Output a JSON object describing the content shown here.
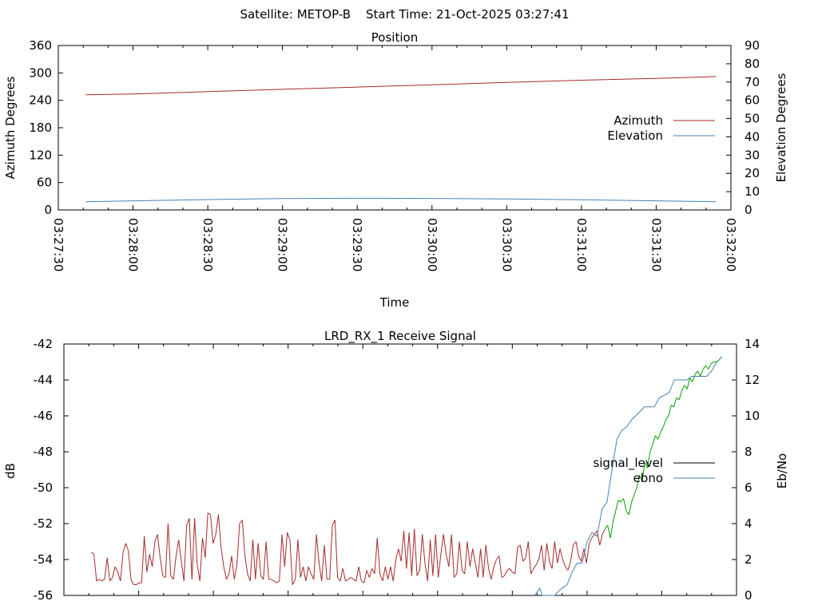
{
  "header": {
    "satellite": "Satellite: METOP-B",
    "start_time": "Start Time: 21-Oct-2025 03:27:41"
  },
  "chart_data": [
    {
      "type": "line",
      "title": "Position",
      "xlabel": "Time",
      "ylabel": "Azimuth Degrees",
      "y2label": "Elevation Degrees",
      "x_ticks": [
        "03:27:30",
        "03:28:00",
        "03:28:30",
        "03:29:00",
        "03:29:30",
        "03:30:00",
        "03:30:30",
        "03:31:00",
        "03:31:30",
        "03:32:00"
      ],
      "xlim": [
        "03:27:30",
        "03:32:00"
      ],
      "ylim": [
        0,
        360
      ],
      "y_ticks": [
        0,
        60,
        120,
        180,
        240,
        300,
        360
      ],
      "y2lim": [
        0,
        90
      ],
      "y2_ticks": [
        0,
        10,
        20,
        30,
        40,
        50,
        60,
        70,
        80,
        90
      ],
      "legend_position": "right",
      "series": [
        {
          "name": "Azimuth",
          "axis": "y",
          "color": "#a52a2a",
          "x": [
            "03:27:41",
            "03:28:00",
            "03:28:30",
            "03:29:00",
            "03:29:30",
            "03:30:00",
            "03:30:30",
            "03:31:00",
            "03:31:30",
            "03:31:54"
          ],
          "values": [
            252,
            254,
            259,
            264,
            269,
            274,
            279,
            284,
            288,
            292
          ]
        },
        {
          "name": "Elevation",
          "axis": "y2",
          "color": "#4682b4",
          "x": [
            "03:27:41",
            "03:28:00",
            "03:28:30",
            "03:29:00",
            "03:29:30",
            "03:30:00",
            "03:30:30",
            "03:31:00",
            "03:31:30",
            "03:31:54"
          ],
          "values": [
            4.5,
            5.0,
            5.7,
            6.2,
            6.4,
            6.3,
            6.0,
            5.6,
            5.0,
            4.5
          ]
        }
      ]
    },
    {
      "type": "line",
      "title": "LRD_RX_1 Receive Signal",
      "ylabel": "dB",
      "y2label": "Eb/No",
      "ylim": [
        -56,
        -42
      ],
      "y_ticks": [
        -56,
        -54,
        -52,
        -50,
        -48,
        -46,
        -44,
        -42
      ],
      "y2lim": [
        0,
        14
      ],
      "y2_ticks": [
        0,
        2,
        4,
        6,
        8,
        10,
        12,
        14
      ],
      "xlim": [
        "03:27:30",
        "03:32:00"
      ],
      "legend_position": "right",
      "series": [
        {
          "name": "signal_level",
          "axis": "y",
          "color": "#000000",
          "segment_colors": {
            "below_threshold": "#a52a2a",
            "above_threshold": "#00a000"
          },
          "x_start": "03:27:41",
          "x_end": "03:31:54",
          "values": [
            -53.6,
            -53.7,
            -55.2,
            -55.1,
            -55.2,
            -55.1,
            -53.9,
            -55.2,
            -55.0,
            -54.4,
            -54.7,
            -55.2,
            -53.6,
            -53.1,
            -53.5,
            -55.1,
            -55.4,
            -55.4,
            -55.3,
            -55.3,
            -52.7,
            -54.7,
            -53.7,
            -54.4,
            -53.0,
            -52.6,
            -53.9,
            -54.9,
            -55.0,
            -52.0,
            -54.9,
            -55.1,
            -53.8,
            -52.9,
            -54.1,
            -55.2,
            -52.1,
            -51.7,
            -55.1,
            -51.7,
            -54.3,
            -55.2,
            -52.8,
            -53.9,
            -51.4,
            -51.5,
            -53.1,
            -52.6,
            -51.5,
            -53.3,
            -54.4,
            -55.1,
            -54.8,
            -53.8,
            -55.1,
            -54.3,
            -52.0,
            -51.8,
            -53.8,
            -54.8,
            -55.2,
            -52.9,
            -55.1,
            -53.1,
            -54.9,
            -55.1,
            -53.0,
            -55.1,
            -55.1,
            -55.2,
            -55.3,
            -55.2,
            -52.6,
            -54.4,
            -52.5,
            -52.9,
            -55.4,
            -55.1,
            -52.9,
            -55.0,
            -54.4,
            -55.2,
            -54.4,
            -54.8,
            -55.1,
            -52.6,
            -54.2,
            -55.2,
            -53.2,
            -55.1,
            -55.1,
            -52.1,
            -51.8,
            -55.0,
            -55.2,
            -54.5,
            -55.2,
            -55.1,
            -55.0,
            -55.1,
            -55.2,
            -54.4,
            -55.2,
            -55.3,
            -54.6,
            -55.0,
            -54.5,
            -54.8,
            -52.8,
            -54.8,
            -55.2,
            -54.4,
            -55.1,
            -54.4,
            -55.2,
            -54.0,
            -53.4,
            -54.1,
            -52.4,
            -54.5,
            -52.5,
            -54.9,
            -52.3,
            -54.9,
            -54.6,
            -52.6,
            -54.2,
            -55.2,
            -52.9,
            -54.9,
            -52.6,
            -55.0,
            -53.7,
            -52.6,
            -53.7,
            -54.4,
            -52.6,
            -55.0,
            -54.8,
            -53.0,
            -54.6,
            -54.8,
            -53.0,
            -54.4,
            -53.4,
            -54.2,
            -55.0,
            -53.4,
            -55.0,
            -53.2,
            -54.5,
            -55.1,
            -54.4,
            -54.0,
            -53.8,
            -55.0,
            -54.9,
            -54.6,
            -54.5,
            -54.7,
            -54.8,
            -53.3,
            -53.2,
            -54.1,
            -53.9,
            -53.0,
            -54.8,
            -54.5,
            -54.3,
            -54.0,
            -53.2,
            -54.6,
            -53.1,
            -54.1,
            -54.5,
            -53.0,
            -54.2,
            -53.4,
            -54.0,
            -54.4,
            -54.6,
            -54.1,
            -53.2,
            -53.0,
            -53.8,
            -54.1,
            -53.4,
            -54.2,
            -53.1,
            -52.8,
            -52.6,
            -52.4,
            -53.2,
            -52.6,
            -52.3,
            -52.1,
            -52.8,
            -51.9,
            -51.3,
            -50.7,
            -50.8,
            -50.6,
            -51.3,
            -51.5,
            -50.8,
            -50.4,
            -50.0,
            -49.3,
            -49.6,
            -48.6,
            -48.9,
            -48.0,
            -47.6,
            -47.1,
            -47.3,
            -46.9,
            -46.6,
            -46.2,
            -46.0,
            -45.4,
            -45.5,
            -45.0,
            -45.1,
            -44.6,
            -44.3,
            -44.5,
            -43.9,
            -44.1,
            -43.7,
            -43.5,
            -43.8,
            -43.4,
            -43.2,
            -43.4,
            -43.1,
            -43.0,
            -43.0,
            -42.9,
            -42.7
          ]
        },
        {
          "name": "ebno",
          "axis": "y2",
          "color": "#4682b4",
          "x": [
            "03:30:39",
            "03:30:41",
            "03:30:42",
            "03:30:47",
            "03:30:49",
            "03:30:52",
            "03:30:54",
            "03:30:56",
            "03:30:58",
            "03:30:59",
            "03:31:00",
            "03:31:02",
            "03:31:04",
            "03:31:06",
            "03:31:08",
            "03:31:10",
            "03:31:12",
            "03:31:14",
            "03:31:16",
            "03:31:18",
            "03:31:21",
            "03:31:23",
            "03:31:27",
            "03:31:29",
            "03:31:33",
            "03:31:35",
            "03:31:40",
            "03:31:42",
            "03:31:48",
            "03:31:50",
            "03:31:52"
          ],
          "values": [
            0,
            0.4,
            0,
            0,
            0.3,
            0.6,
            1.3,
            1.8,
            1.8,
            2.4,
            3.0,
            3.5,
            3.3,
            4.8,
            5.2,
            7.0,
            8.7,
            9.2,
            9.4,
            9.8,
            10.2,
            10.5,
            10.5,
            11.0,
            11.3,
            12.0,
            12.0,
            12.2,
            12.2,
            12.5,
            13.0
          ]
        }
      ]
    }
  ]
}
